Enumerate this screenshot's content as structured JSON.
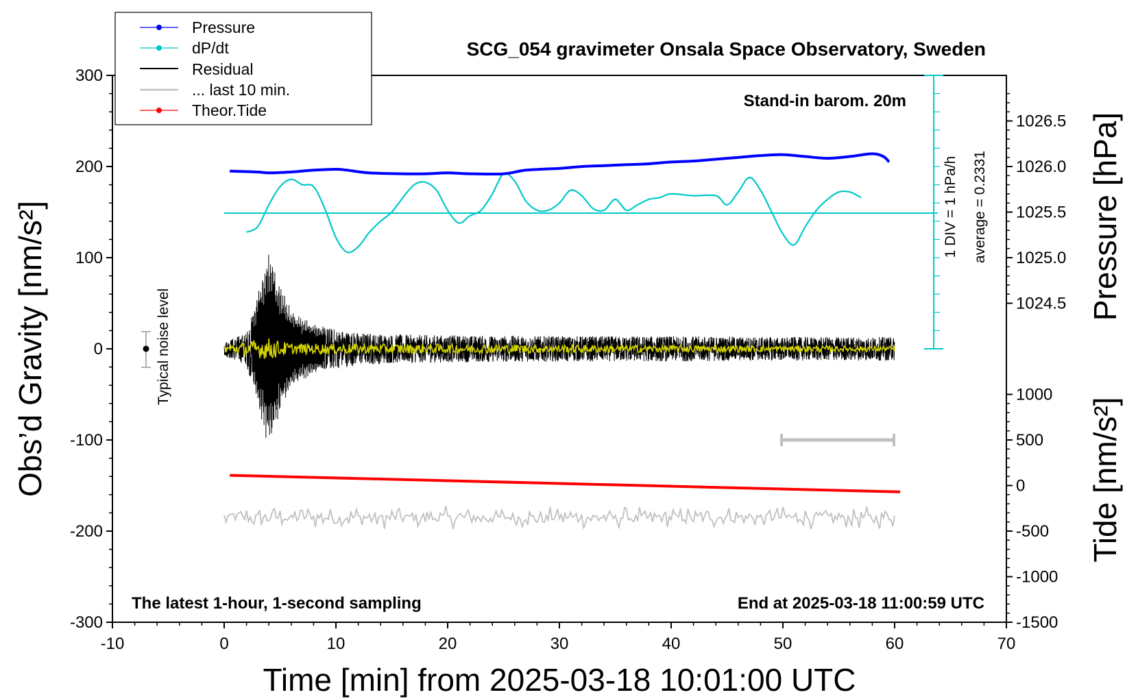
{
  "chart_data": {
    "type": "line",
    "title": "SCG_054 gravimeter Onsala Space Observatory, Sweden",
    "xlabel": "Time [min] from 2025-03-18 10:01:00 UTC",
    "ylabel_left": "Obs’d Gravity [nm/s²]",
    "ylabel_right_top": "Pressure [hPa]",
    "ylabel_right_bottom": "Tide [nm/s²]",
    "xlim": [
      -10,
      70
    ],
    "ylim": [
      -300,
      300
    ],
    "x_ticks": [
      -10,
      0,
      10,
      20,
      30,
      40,
      50,
      60,
      70
    ],
    "y_ticks": [
      300,
      200,
      100,
      0,
      -100,
      -200,
      -300
    ],
    "pressure_ticks": [
      "1026.5",
      "1026.0",
      "1025.5",
      "1025.0",
      "1024.5"
    ],
    "pressure_tick_values": [
      1026.5,
      1026.0,
      1025.5,
      1025.0,
      1024.5
    ],
    "tide_ticks": [
      "1000",
      "500",
      "0",
      "-500",
      "-1000",
      "-1500"
    ],
    "tide_tick_values": [
      1000,
      500,
      0,
      -500,
      -1000,
      -1500
    ],
    "legend": [
      {
        "label": "Pressure",
        "color": "#0000ff",
        "marker": true
      },
      {
        "label": "dP/dt",
        "color": "#00c8c8",
        "marker": true
      },
      {
        "label": "Residual",
        "color": "#000000",
        "marker": false
      },
      {
        "label": "... last 10 min.",
        "color": "#c0c0c0",
        "marker": false
      },
      {
        "label": "Theor.Tide",
        "color": "#ff0000",
        "marker": true
      }
    ],
    "annotations": {
      "barometer": "Stand-in barom. 20m",
      "div_note": "1 DIV = 1 hPa/h",
      "average_note": "average = 0.2331",
      "noise_label": "Typical noise level",
      "bottom_left": "The latest 1-hour, 1-second sampling",
      "bottom_right": "End at 2025-03-18 11:00:59 UTC"
    },
    "series": [
      {
        "name": "Pressure",
        "unit": "hPa",
        "color": "#0000ff",
        "x": [
          0.5,
          3,
          4,
          6,
          8,
          10,
          11,
          13,
          16,
          18,
          20,
          22,
          25,
          27,
          30,
          32,
          34,
          36,
          38,
          40,
          42,
          44,
          46,
          48,
          50,
          52,
          54,
          56,
          58,
          59,
          59.5
        ],
        "y": [
          1025.95,
          1025.94,
          1025.93,
          1025.94,
          1025.96,
          1025.97,
          1025.96,
          1025.93,
          1025.92,
          1025.92,
          1025.93,
          1025.92,
          1025.92,
          1025.96,
          1025.98,
          1026.0,
          1026.01,
          1026.02,
          1026.03,
          1026.05,
          1026.06,
          1026.08,
          1026.1,
          1026.12,
          1026.13,
          1026.11,
          1026.09,
          1026.11,
          1026.14,
          1026.11,
          1026.05
        ]
      },
      {
        "name": "dP/dt",
        "unit": "hPa/h (relative, baseline = average)",
        "color": "#00c8c8",
        "x": [
          2,
          3,
          4,
          5,
          6,
          7,
          8,
          9,
          10,
          11,
          12,
          13,
          14,
          15,
          16,
          17,
          18,
          19,
          20,
          21,
          22,
          23,
          24,
          25,
          26,
          27,
          28,
          29,
          30,
          31,
          32,
          33,
          34,
          35,
          36,
          37,
          38,
          39,
          40,
          42,
          44,
          45,
          46,
          47,
          48,
          49,
          50,
          51,
          52,
          53,
          54,
          55,
          56,
          57
        ],
        "y": [
          -0.55,
          -0.4,
          0.2,
          0.7,
          0.9,
          0.75,
          0.7,
          0.1,
          -0.7,
          -1.1,
          -0.95,
          -0.55,
          -0.25,
          0.0,
          0.4,
          0.75,
          0.82,
          0.6,
          0.05,
          -0.3,
          -0.1,
          0.05,
          0.5,
          1.05,
          0.85,
          0.3,
          0.05,
          0.05,
          0.25,
          0.6,
          0.45,
          0.1,
          0.05,
          0.35,
          0.05,
          0.2,
          0.35,
          0.4,
          0.5,
          0.45,
          0.45,
          0.2,
          0.55,
          0.95,
          0.6,
          0.0,
          -0.6,
          -0.9,
          -0.4,
          0.05,
          0.35,
          0.55,
          0.55,
          0.4
        ]
      },
      {
        "name": "Residual",
        "unit": "nm/s²",
        "color": "#000000",
        "x": [
          0,
          2,
          3,
          3.5,
          4,
          4.5,
          5,
          6,
          7,
          8,
          10,
          12,
          15,
          20,
          30,
          40,
          50,
          60
        ],
        "amplitude": [
          8,
          18,
          60,
          90,
          108,
          95,
          70,
          45,
          35,
          28,
          22,
          18,
          16,
          15,
          14,
          14,
          13,
          13
        ]
      },
      {
        "name": "Residual (smoothed)",
        "unit": "nm/s²",
        "color": "#d4d400",
        "x": [
          0,
          3,
          4,
          6,
          60
        ],
        "amplitude": [
          4,
          10,
          12,
          6,
          3
        ]
      },
      {
        "name": "... last 10 min.",
        "unit": "nm/s² (offset -185)",
        "color": "#c0c0c0",
        "offset": -185,
        "amplitude": 13,
        "x_range": [
          0,
          60
        ]
      },
      {
        "name": "Theor.Tide",
        "unit": "nm/s²",
        "color": "#ff0000",
        "x": [
          0.5,
          60.5
        ],
        "y": [
          112,
          -70
        ]
      }
    ],
    "noise_level": {
      "x": -7,
      "center": 0,
      "range": [
        -20,
        20
      ]
    },
    "ten_minute_bar": {
      "x": [
        50,
        60
      ],
      "y": -100
    }
  }
}
